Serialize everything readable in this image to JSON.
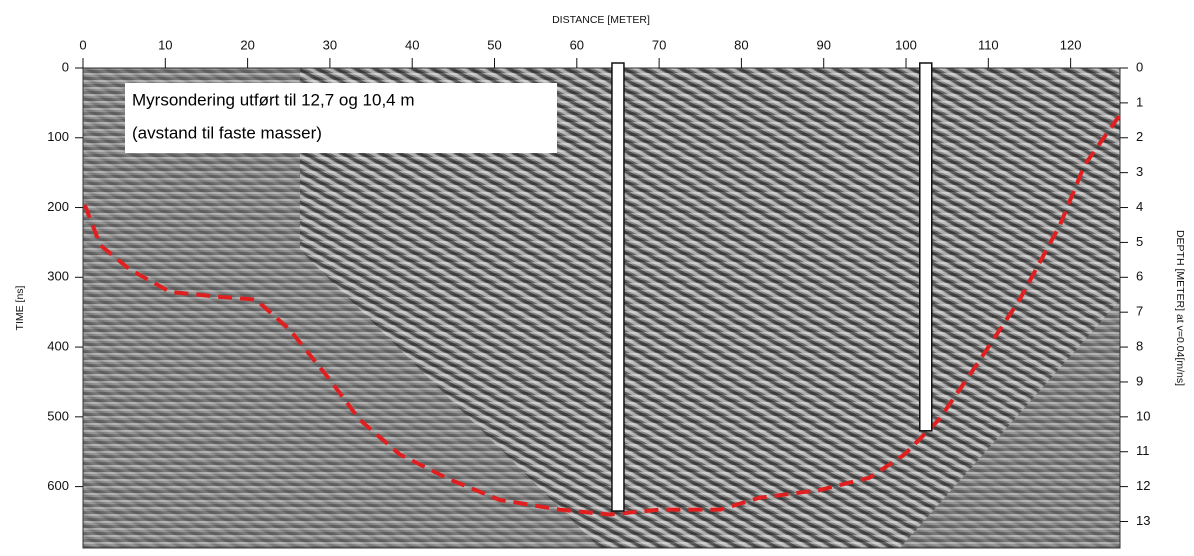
{
  "chart_data": {
    "type": "radargram",
    "title": "DISTANCE [METER]",
    "y_label": "TIME [ns]",
    "y2_label": "DEPTH [METER] at v=0.04[m/ns]",
    "annotation": [
      "Myrsondering utført til 12,7 og 10,4 m",
      "(avstand til faste masser)"
    ],
    "xlim": [
      0,
      126
    ],
    "xticks": [
      0,
      10,
      20,
      30,
      40,
      50,
      60,
      70,
      80,
      90,
      100,
      110,
      120
    ],
    "ylim": [
      0,
      688
    ],
    "yticks": [
      0,
      100,
      200,
      300,
      400,
      500,
      600
    ],
    "y2lim": [
      0,
      13.76
    ],
    "y2ticks": [
      0,
      1,
      2,
      3,
      4,
      5,
      6,
      7,
      8,
      9,
      10,
      11,
      12,
      13
    ],
    "interface": {
      "color": "#e02020",
      "x": [
        0.2,
        2.1,
        5.7,
        10.6,
        16.6,
        21,
        25.1,
        30,
        33.6,
        38.5,
        44.6,
        50.6,
        57.9,
        64,
        70,
        77.4,
        82.2,
        89.5,
        95.6,
        99.8,
        104,
        109,
        113.8,
        118.7,
        121.7,
        126
      ],
      "values": [
        196,
        254,
        289,
        321,
        328,
        332,
        375,
        447,
        504,
        554,
        590,
        619,
        633,
        640,
        633,
        633,
        616,
        605,
        587,
        554,
        504,
        418,
        332,
        225,
        139,
        67
      ]
    },
    "soundings": {
      "axis": "y2",
      "color": "#ffffff",
      "x": [
        65,
        102.4
      ],
      "values": [
        12.7,
        10.4
      ]
    }
  }
}
